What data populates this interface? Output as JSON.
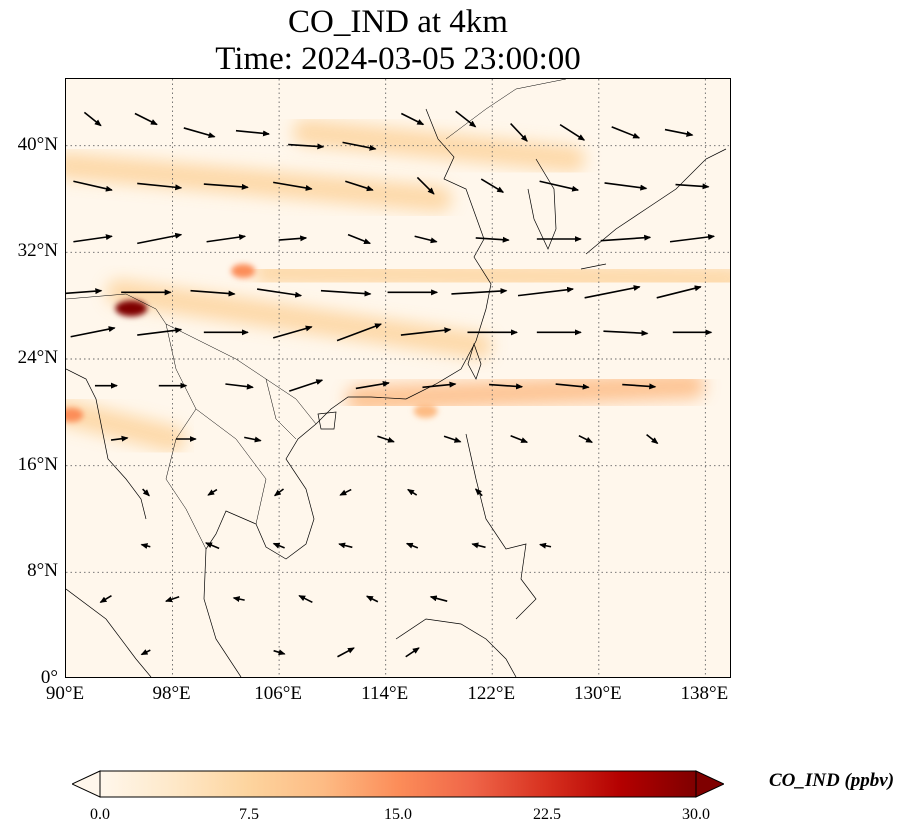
{
  "title": {
    "line1": "CO_IND at 4km",
    "line2": "Time: 2024-03-05 23:00:00"
  },
  "map": {
    "projection": "PlateCarree",
    "lon_range": [
      90,
      140
    ],
    "lat_range": [
      0,
      45
    ],
    "gridlines": "dotted",
    "x_ticks": [
      "90°E",
      "98°E",
      "106°E",
      "114°E",
      "122°E",
      "130°E",
      "138°E"
    ],
    "y_ticks": [
      "0°",
      "8°N",
      "16°N",
      "24°N",
      "32°N",
      "40°N"
    ]
  },
  "colorbar": {
    "label": "CO_IND (ppbv)",
    "ticks": [
      "0.0",
      "7.5",
      "15.0",
      "22.5",
      "30.0"
    ],
    "range": [
      0,
      30
    ],
    "extend": "both",
    "cmap": "OrRd",
    "colors": [
      "#fff7ec",
      "#fee8c8",
      "#fdd49e",
      "#fdbb84",
      "#fc8d59",
      "#ef6548",
      "#d7301f",
      "#b30000",
      "#7f0000"
    ]
  },
  "chart_data": {
    "type": "heatmap",
    "variable": "CO_IND",
    "units": "ppbv",
    "plumes": [
      {
        "lon_from": 90,
        "lat_from": 38.5,
        "lon_to": 118,
        "lat_to": 36,
        "value": 9
      },
      {
        "lon_from": 108,
        "lat_from": 41,
        "lon_to": 128,
        "lat_to": 39,
        "value": 8
      },
      {
        "lon_from": 105,
        "lat_from": 30.5,
        "lon_to": 140,
        "lat_to": 30,
        "value": 9
      },
      {
        "lon_from": 94,
        "lat_from": 29,
        "lon_to": 121,
        "lat_to": 25,
        "value": 8
      },
      {
        "lon_from": 112,
        "lat_from": 21,
        "lon_to": 137,
        "lat_to": 22,
        "value": 10
      },
      {
        "lon_from": 90,
        "lat_from": 20,
        "lon_to": 98,
        "lat_to": 18,
        "value": 8
      }
    ],
    "hotspots": [
      {
        "lon": 94.9,
        "lat": 27.8,
        "value": 30
      },
      {
        "lon": 103.3,
        "lat": 30.6,
        "value": 15
      },
      {
        "lon": 90.4,
        "lat": 19.8,
        "value": 15
      },
      {
        "lon": 117,
        "lat": 20.1,
        "value": 12
      }
    ],
    "wind_vectors": [
      {
        "lon": 92,
        "lat": 42,
        "u": 1.5,
        "v": -1.2
      },
      {
        "lon": 96,
        "lat": 42,
        "u": 2.0,
        "v": -1.0
      },
      {
        "lon": 100,
        "lat": 41,
        "u": 2.8,
        "v": -0.8
      },
      {
        "lon": 104,
        "lat": 41,
        "u": 3.0,
        "v": -0.3
      },
      {
        "lon": 108,
        "lat": 40,
        "u": 3.2,
        "v": -0.2
      },
      {
        "lon": 112,
        "lat": 40,
        "u": 3.0,
        "v": -0.6
      },
      {
        "lon": 116,
        "lat": 42,
        "u": 2.0,
        "v": -1.0
      },
      {
        "lon": 120,
        "lat": 42,
        "u": 1.8,
        "v": -1.4
      },
      {
        "lon": 124,
        "lat": 41,
        "u": 1.5,
        "v": -1.6
      },
      {
        "lon": 128,
        "lat": 41,
        "u": 2.2,
        "v": -1.4
      },
      {
        "lon": 132,
        "lat": 41,
        "u": 2.5,
        "v": -1.0
      },
      {
        "lon": 136,
        "lat": 41,
        "u": 2.5,
        "v": -0.5
      },
      {
        "lon": 92,
        "lat": 37,
        "u": 3.5,
        "v": -0.8
      },
      {
        "lon": 97,
        "lat": 37,
        "u": 4.0,
        "v": -0.4
      },
      {
        "lon": 102,
        "lat": 37,
        "u": 4.0,
        "v": -0.3
      },
      {
        "lon": 107,
        "lat": 37,
        "u": 3.5,
        "v": -0.6
      },
      {
        "lon": 112,
        "lat": 37,
        "u": 2.5,
        "v": -0.8
      },
      {
        "lon": 117,
        "lat": 37,
        "u": 1.5,
        "v": -1.5
      },
      {
        "lon": 122,
        "lat": 37,
        "u": 2.0,
        "v": -1.2
      },
      {
        "lon": 127,
        "lat": 37,
        "u": 3.5,
        "v": -0.8
      },
      {
        "lon": 132,
        "lat": 37,
        "u": 3.8,
        "v": -0.5
      },
      {
        "lon": 137,
        "lat": 37,
        "u": 3.0,
        "v": -0.2
      },
      {
        "lon": 92,
        "lat": 33,
        "u": 3.5,
        "v": 0.5
      },
      {
        "lon": 97,
        "lat": 33,
        "u": 4.0,
        "v": 0.8
      },
      {
        "lon": 102,
        "lat": 33,
        "u": 3.5,
        "v": 0.5
      },
      {
        "lon": 107,
        "lat": 33,
        "u": 2.5,
        "v": 0.2
      },
      {
        "lon": 112,
        "lat": 33,
        "u": 2.0,
        "v": -0.8
      },
      {
        "lon": 117,
        "lat": 33,
        "u": 2.0,
        "v": -0.5
      },
      {
        "lon": 122,
        "lat": 33,
        "u": 3.0,
        "v": -0.2
      },
      {
        "lon": 127,
        "lat": 33,
        "u": 4.0,
        "v": 0.0
      },
      {
        "lon": 132,
        "lat": 33,
        "u": 4.5,
        "v": 0.3
      },
      {
        "lon": 137,
        "lat": 33,
        "u": 4.0,
        "v": 0.5
      },
      {
        "lon": 91,
        "lat": 29,
        "u": 4.0,
        "v": 0.3
      },
      {
        "lon": 96,
        "lat": 29,
        "u": 4.5,
        "v": 0.0
      },
      {
        "lon": 101,
        "lat": 29,
        "u": 4.0,
        "v": -0.3
      },
      {
        "lon": 106,
        "lat": 29,
        "u": 4.0,
        "v": -0.6
      },
      {
        "lon": 111,
        "lat": 29,
        "u": 4.5,
        "v": -0.3
      },
      {
        "lon": 116,
        "lat": 29,
        "u": 4.5,
        "v": 0.0
      },
      {
        "lon": 121,
        "lat": 29,
        "u": 5.0,
        "v": 0.3
      },
      {
        "lon": 126,
        "lat": 29,
        "u": 5.0,
        "v": 0.6
      },
      {
        "lon": 131,
        "lat": 29,
        "u": 5.0,
        "v": 1.0
      },
      {
        "lon": 136,
        "lat": 29,
        "u": 4.0,
        "v": 1.0
      },
      {
        "lon": 92,
        "lat": 26,
        "u": 4.0,
        "v": 0.8
      },
      {
        "lon": 97,
        "lat": 26,
        "u": 4.0,
        "v": 0.5
      },
      {
        "lon": 102,
        "lat": 26,
        "u": 4.0,
        "v": 0.0
      },
      {
        "lon": 107,
        "lat": 26,
        "u": 3.5,
        "v": 1.0
      },
      {
        "lon": 112,
        "lat": 26,
        "u": 4.0,
        "v": 1.5
      },
      {
        "lon": 117,
        "lat": 26,
        "u": 4.5,
        "v": 0.5
      },
      {
        "lon": 122,
        "lat": 26,
        "u": 4.5,
        "v": 0.0
      },
      {
        "lon": 127,
        "lat": 26,
        "u": 4.0,
        "v": 0.0
      },
      {
        "lon": 132,
        "lat": 26,
        "u": 4.0,
        "v": -0.2
      },
      {
        "lon": 137,
        "lat": 26,
        "u": 3.5,
        "v": 0.0
      },
      {
        "lon": 93,
        "lat": 22,
        "u": 2.0,
        "v": 0.0
      },
      {
        "lon": 98,
        "lat": 22,
        "u": 2.5,
        "v": 0.0
      },
      {
        "lon": 103,
        "lat": 22,
        "u": 2.5,
        "v": -0.3
      },
      {
        "lon": 108,
        "lat": 22,
        "u": 3.0,
        "v": 1.0
      },
      {
        "lon": 113,
        "lat": 22,
        "u": 3.0,
        "v": 0.5
      },
      {
        "lon": 118,
        "lat": 22,
        "u": 3.0,
        "v": 0.3
      },
      {
        "lon": 123,
        "lat": 22,
        "u": 3.0,
        "v": -0.2
      },
      {
        "lon": 128,
        "lat": 22,
        "u": 3.0,
        "v": -0.3
      },
      {
        "lon": 133,
        "lat": 22,
        "u": 3.0,
        "v": -0.2
      },
      {
        "lon": 94,
        "lat": 18,
        "u": 1.5,
        "v": 0.2
      },
      {
        "lon": 99,
        "lat": 18,
        "u": 1.8,
        "v": 0.0
      },
      {
        "lon": 104,
        "lat": 18,
        "u": 1.5,
        "v": -0.3
      },
      {
        "lon": 114,
        "lat": 18,
        "u": 1.5,
        "v": -0.5
      },
      {
        "lon": 119,
        "lat": 18,
        "u": 1.5,
        "v": -0.5
      },
      {
        "lon": 124,
        "lat": 18,
        "u": 1.5,
        "v": -0.6
      },
      {
        "lon": 129,
        "lat": 18,
        "u": 1.2,
        "v": -0.6
      },
      {
        "lon": 134,
        "lat": 18,
        "u": 1.0,
        "v": -0.8
      },
      {
        "lon": 96,
        "lat": 14,
        "u": 0.6,
        "v": -0.6
      },
      {
        "lon": 101,
        "lat": 14,
        "u": -0.8,
        "v": -0.5
      },
      {
        "lon": 106,
        "lat": 14,
        "u": -0.8,
        "v": -0.6
      },
      {
        "lon": 111,
        "lat": 14,
        "u": -1.0,
        "v": -0.5
      },
      {
        "lon": 116,
        "lat": 14,
        "u": -0.8,
        "v": 0.5
      },
      {
        "lon": 121,
        "lat": 14,
        "u": -0.6,
        "v": 0.6
      },
      {
        "lon": 96,
        "lat": 10,
        "u": -0.8,
        "v": 0.2
      },
      {
        "lon": 101,
        "lat": 10,
        "u": -1.2,
        "v": 0.5
      },
      {
        "lon": 106,
        "lat": 10,
        "u": -1.0,
        "v": 0.4
      },
      {
        "lon": 111,
        "lat": 10,
        "u": -1.2,
        "v": 0.3
      },
      {
        "lon": 116,
        "lat": 10,
        "u": -1.0,
        "v": 0.4
      },
      {
        "lon": 121,
        "lat": 10,
        "u": -1.2,
        "v": 0.3
      },
      {
        "lon": 126,
        "lat": 10,
        "u": -1.0,
        "v": 0.2
      },
      {
        "lon": 93,
        "lat": 6,
        "u": -1.0,
        "v": -0.6
      },
      {
        "lon": 98,
        "lat": 6,
        "u": -1.2,
        "v": -0.4
      },
      {
        "lon": 103,
        "lat": 6,
        "u": -1.0,
        "v": 0.2
      },
      {
        "lon": 108,
        "lat": 6,
        "u": -1.2,
        "v": 0.6
      },
      {
        "lon": 113,
        "lat": 6,
        "u": -1.0,
        "v": 0.5
      },
      {
        "lon": 118,
        "lat": 6,
        "u": -1.5,
        "v": 0.4
      },
      {
        "lon": 96,
        "lat": 2,
        "u": -0.8,
        "v": -0.4
      },
      {
        "lon": 106,
        "lat": 2,
        "u": 1.0,
        "v": -0.3
      },
      {
        "lon": 111,
        "lat": 2,
        "u": 1.5,
        "v": 0.8
      },
      {
        "lon": 116,
        "lat": 2,
        "u": 1.2,
        "v": 0.8
      }
    ]
  }
}
